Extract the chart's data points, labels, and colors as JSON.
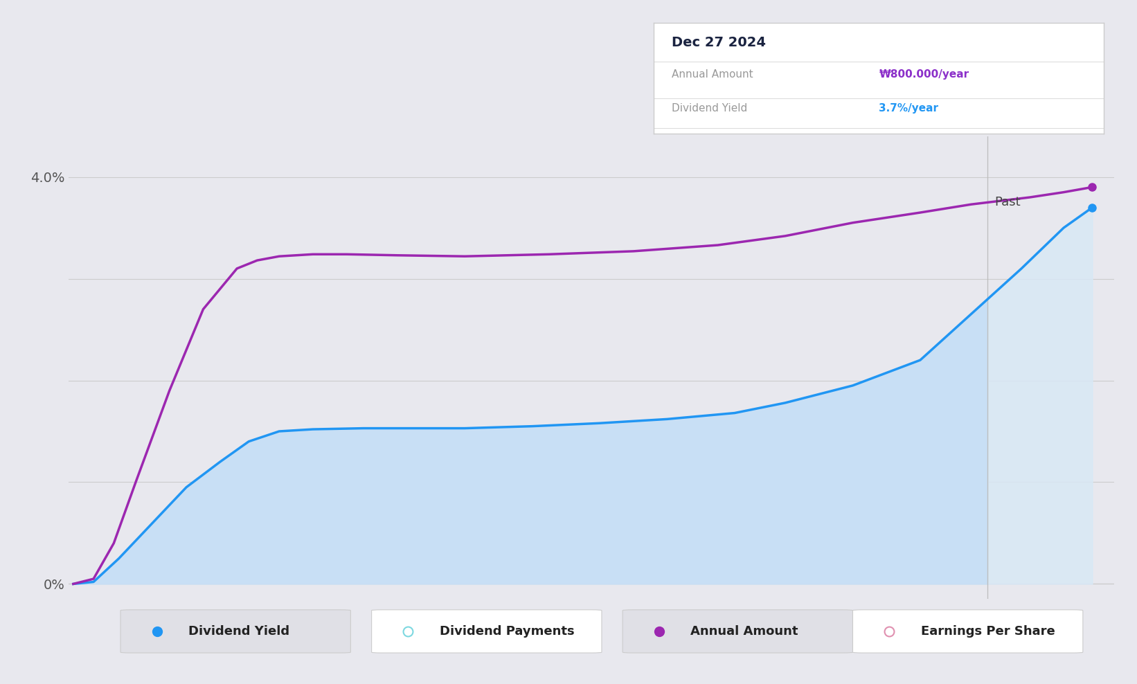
{
  "background_color": "#e8e8ee",
  "plot_bg_color": "#e8e8ee",
  "line_blue_color": "#2196f3",
  "line_purple_color": "#9c27b0",
  "fill_blue_color": "#c8dff5",
  "fill_past_color": "#d8e8f5",
  "tooltip": {
    "title": "Dec 27 2024",
    "row1_label": "Annual Amount",
    "row1_value": "₩800.000/year",
    "row1_value_color": "#8b2fc9",
    "row2_label": "Dividend Yield",
    "row2_value": "3.7%/year",
    "row2_value_color": "#2196f3"
  },
  "legend_items": [
    {
      "label": "Dividend Yield",
      "color": "#2196f3",
      "type": "filled"
    },
    {
      "label": "Dividend Payments",
      "color": "#7dd8e0",
      "type": "open"
    },
    {
      "label": "Annual Amount",
      "color": "#9c27b0",
      "type": "filled"
    },
    {
      "label": "Earnings Per Share",
      "color": "#e090b0",
      "type": "open"
    }
  ],
  "blue_x": [
    2018.88,
    2019.0,
    2019.15,
    2019.35,
    2019.55,
    2019.75,
    2019.92,
    2020.1,
    2020.3,
    2020.6,
    2020.9,
    2021.2,
    2021.6,
    2022.0,
    2022.4,
    2022.8,
    2023.1,
    2023.5,
    2023.9,
    2024.2,
    2024.5,
    2024.75,
    2024.92
  ],
  "blue_y": [
    0.0,
    0.02,
    0.25,
    0.6,
    0.95,
    1.2,
    1.4,
    1.5,
    1.52,
    1.53,
    1.53,
    1.53,
    1.55,
    1.58,
    1.62,
    1.68,
    1.78,
    1.95,
    2.2,
    2.65,
    3.1,
    3.5,
    3.7
  ],
  "purple_x": [
    2018.88,
    2019.0,
    2019.12,
    2019.25,
    2019.45,
    2019.65,
    2019.85,
    2019.97,
    2020.1,
    2020.3,
    2020.5,
    2020.8,
    2021.2,
    2021.7,
    2022.2,
    2022.7,
    2023.1,
    2023.5,
    2023.9,
    2024.2,
    2024.55,
    2024.75,
    2024.92
  ],
  "purple_y": [
    0.0,
    0.05,
    0.4,
    1.0,
    1.9,
    2.7,
    3.1,
    3.18,
    3.22,
    3.24,
    3.24,
    3.23,
    3.22,
    3.24,
    3.27,
    3.33,
    3.42,
    3.55,
    3.65,
    3.73,
    3.8,
    3.85,
    3.9
  ],
  "past_x_start": 2024.3,
  "xlim": [
    2018.85,
    2025.05
  ],
  "ylim_bottom": -0.15,
  "ylim_top": 4.4,
  "yticks": [
    0.0,
    1.0,
    2.0,
    3.0,
    4.0
  ],
  "ytick_labels": [
    "0%",
    "",
    "",
    "",
    "4.0%"
  ],
  "xticks": [
    2019,
    2020,
    2021,
    2022,
    2023,
    2024
  ]
}
